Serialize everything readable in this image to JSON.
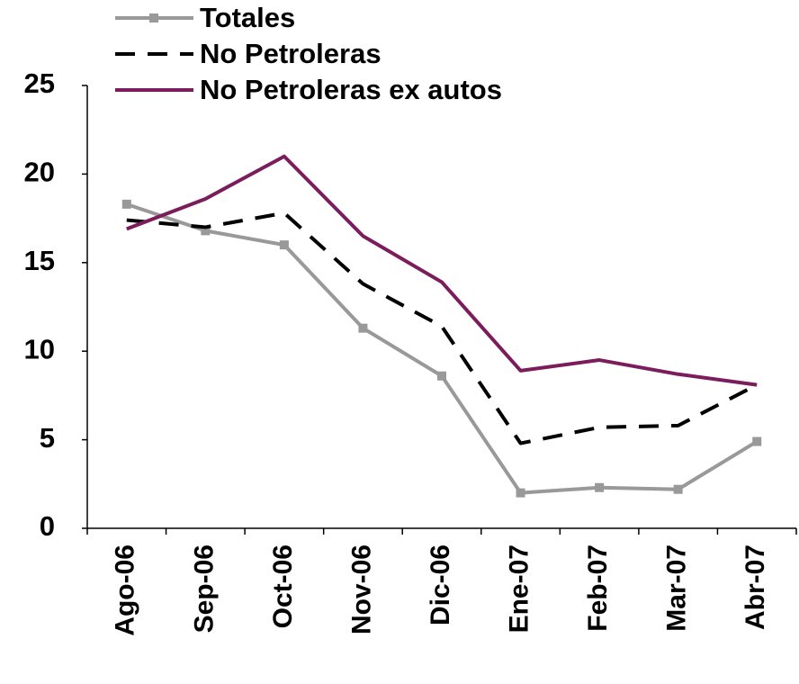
{
  "chart_data": {
    "type": "line",
    "categories": [
      "Ago-06",
      "Sep-06",
      "Oct-06",
      "Nov-06",
      "Dic-06",
      "Ene-07",
      "Feb-07",
      "Mar-07",
      "Abr-07"
    ],
    "series": [
      {
        "name": "Totales",
        "color": "#999999",
        "style": "solid",
        "marker": "square",
        "values": [
          18.3,
          16.8,
          16.0,
          11.3,
          8.6,
          2.0,
          2.3,
          2.2,
          4.9
        ]
      },
      {
        "name": "No Petroleras",
        "color": "#000000",
        "style": "dashed",
        "marker": "none",
        "values": [
          17.4,
          17.0,
          17.8,
          13.8,
          11.4,
          4.8,
          5.7,
          5.8,
          8.1
        ]
      },
      {
        "name": "No Petroleras ex autos",
        "color": "#7b1c5c",
        "style": "solid",
        "marker": "none",
        "values": [
          16.9,
          18.6,
          21.0,
          16.5,
          13.9,
          8.9,
          9.5,
          8.7,
          8.1
        ]
      }
    ],
    "ylim": [
      0,
      25
    ],
    "yticks": [
      0,
      5,
      10,
      15,
      20,
      25
    ],
    "grid": false,
    "legend": "top"
  }
}
